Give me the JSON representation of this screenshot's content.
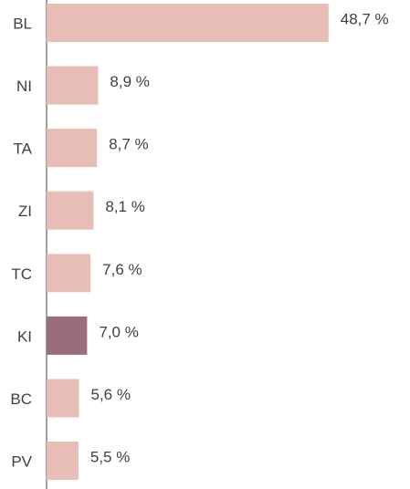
{
  "chart_data": {
    "type": "barh",
    "categories": [
      "BL",
      "NI",
      "TA",
      "ZI",
      "TC",
      "KI",
      "BC",
      "PV"
    ],
    "values": [
      48.7,
      8.9,
      8.7,
      8.1,
      7.6,
      7.0,
      5.6,
      5.5
    ],
    "value_labels": [
      "48,7 %",
      "8,9 %",
      "8,7 %",
      "8,1 %",
      "7,6 %",
      "7,0 %",
      "5,6 %",
      "5,5 %"
    ],
    "colors": [
      "#e8bdb6",
      "#e8bdb6",
      "#e8bdb6",
      "#e8bdb6",
      "#e8bdb6",
      "#9b6b7e",
      "#e8bdb6",
      "#e8bdb6"
    ],
    "xlim": [
      0,
      50
    ]
  }
}
